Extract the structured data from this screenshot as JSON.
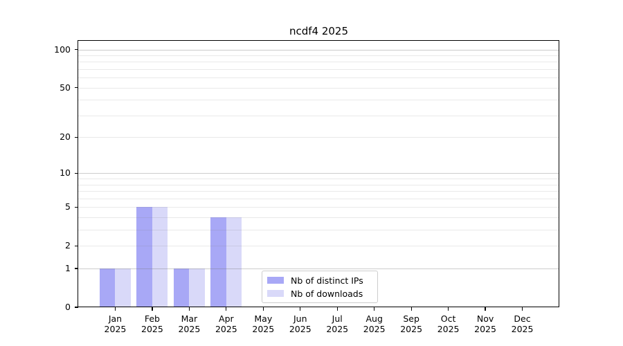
{
  "title": "ncdf4 2025",
  "colors": {
    "distinct_ips_bar": "#a8a8f6",
    "downloads_bar": "#d9d9f9",
    "grid": "#787878",
    "spine": "#000000",
    "legend_border": "#cccccc",
    "text": "#000000"
  },
  "legend": {
    "items": [
      {
        "label": "Nb of distinct IPs",
        "color": "#a8a8f6"
      },
      {
        "label": "Nb of downloads",
        "color": "#d9d9f9"
      }
    ]
  },
  "y_axis": {
    "tick_values": [
      0,
      1,
      2,
      5,
      10,
      20,
      50,
      100
    ],
    "major_grid_values": [
      1,
      10,
      100
    ],
    "minor_grid_values": [
      2,
      3,
      4,
      5,
      6,
      7,
      8,
      9,
      20,
      30,
      40,
      50,
      60,
      70,
      80,
      90
    ]
  },
  "x_axis": {
    "year_line": "2025"
  },
  "chart_data": {
    "type": "bar",
    "title": "ncdf4 2025",
    "xlabel": "",
    "ylabel": "",
    "categories": [
      "Jan 2025",
      "Feb 2025",
      "Mar 2025",
      "Apr 2025",
      "May 2025",
      "Jun 2025",
      "Jul 2025",
      "Aug 2025",
      "Sep 2025",
      "Oct 2025",
      "Nov 2025",
      "Dec 2025"
    ],
    "series": [
      {
        "name": "Nb of distinct IPs",
        "color": "#a8a8f6",
        "values": [
          1,
          5,
          1,
          4,
          0,
          0,
          0,
          0,
          0,
          0,
          0,
          0
        ]
      },
      {
        "name": "Nb of downloads",
        "color": "#d9d9f9",
        "values": [
          1,
          5,
          1,
          4,
          0,
          0,
          0,
          0,
          0,
          0,
          0,
          0
        ]
      }
    ],
    "yscale": "log1p",
    "y_ticks": [
      0,
      1,
      2,
      5,
      10,
      20,
      50,
      100
    ],
    "ylim": [
      0,
      117
    ],
    "grid": "horizontal",
    "legend_position": "bottom-center-inside"
  }
}
